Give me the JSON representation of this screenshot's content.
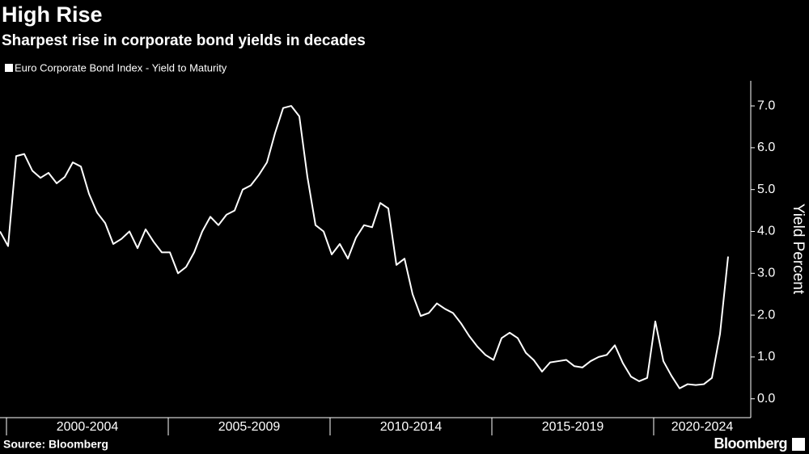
{
  "chart_data": {
    "type": "line",
    "title": "High Rise",
    "subtitle": "Sharpest rise in corporate bond yields in decades",
    "series": [
      {
        "name": "Euro Corporate Bond Index - Yield to Maturity",
        "color": "#ffffff",
        "values": [
          4.0,
          3.65,
          5.8,
          5.85,
          5.45,
          5.28,
          5.4,
          5.15,
          5.3,
          5.65,
          5.55,
          4.9,
          4.45,
          4.2,
          3.7,
          3.82,
          4.0,
          3.6,
          4.05,
          3.75,
          3.5,
          3.5,
          3.0,
          3.15,
          3.5,
          4.0,
          4.35,
          4.15,
          4.4,
          4.5,
          5.0,
          5.1,
          5.35,
          5.65,
          6.35,
          6.95,
          7.0,
          6.75,
          5.3,
          4.15,
          4.0,
          3.45,
          3.7,
          3.35,
          3.85,
          4.15,
          4.1,
          4.68,
          4.55,
          3.2,
          3.35,
          2.5,
          1.98,
          2.05,
          2.28,
          2.15,
          2.05,
          1.8,
          1.5,
          1.25,
          1.05,
          0.93,
          1.45,
          1.58,
          1.45,
          1.1,
          0.92,
          0.65,
          0.87,
          0.9,
          0.93,
          0.78,
          0.75,
          0.9,
          1.0,
          1.05,
          1.28,
          0.85,
          0.53,
          0.42,
          0.5,
          1.85,
          0.9,
          0.55,
          0.25,
          0.35,
          0.33,
          0.35,
          0.5,
          1.55,
          3.4
        ]
      }
    ],
    "periods": [
      "2000-2004",
      "2005-2009",
      "2010-2014",
      "2015-2019",
      "2020-2024"
    ],
    "y_label": "Yield Percent",
    "ylim": [
      -0.45,
      7.6
    ],
    "yticks": [
      {
        "value": 0,
        "label": "0.0"
      },
      {
        "value": 1,
        "label": "1.0"
      },
      {
        "value": 2,
        "label": "2.0"
      },
      {
        "value": 3,
        "label": "3.0"
      },
      {
        "value": 4,
        "label": "4.0"
      },
      {
        "value": 5,
        "label": "5.0"
      },
      {
        "value": 6,
        "label": "6.0"
      },
      {
        "value": 7,
        "label": "7.0"
      }
    ],
    "source": "Source: Bloomberg",
    "brand": "Bloomberg"
  }
}
